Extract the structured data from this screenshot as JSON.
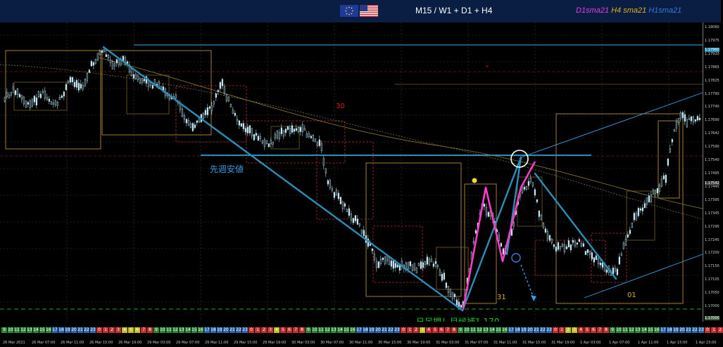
{
  "header": {
    "title": "M15 / W1 + D1 + H4",
    "flags": [
      "eu-flag-icon",
      "us-flag-icon"
    ],
    "ma_legend": [
      {
        "label": "D1sma21",
        "color": "#e040e0"
      },
      {
        "label": "H4 sma21",
        "color": "#e0b020"
      },
      {
        "label": "H1sma21",
        "color": "#3a78d8"
      }
    ]
  },
  "annotations": {
    "last_week_low": "先週安値",
    "daily_pullback": "日足押し目候補1.170",
    "day_30": "30",
    "day_31": "31",
    "day_01": "01"
  },
  "price_axis": {
    "ticks": [
      "1.18080",
      "1.17975",
      "1.17920",
      "1.17865",
      "1.17825",
      "1.17790",
      "1.17740",
      "1.17690",
      "1.17642",
      "1.17590",
      "1.17540",
      "1.17495",
      "1.17445",
      "1.17395",
      "1.17345",
      "1.17295",
      "1.17245",
      "1.17200",
      "1.17150",
      "1.17105",
      "1.17050",
      "1.17000",
      "1.16955"
    ],
    "current_price": "1.17960",
    "mid_price": "1.17542",
    "low_price": "1.17000"
  },
  "time_axis": {
    "labels": [
      "26 Mar 2021",
      "26 Mar 07:00",
      "26 Mar 11:00",
      "26 Mar 15:00",
      "26 Mar 19:00",
      "29 Mar 03:00",
      "29 Mar 07:00",
      "29 Mar 11:00",
      "29 Mar 15:00",
      "29 Mar 19:00",
      "30 Mar 03:00",
      "30 Mar 07:00",
      "30 Mar 11:00",
      "30 Mar 15:00",
      "30 Mar 19:00",
      "31 Mar 03:00",
      "31 Mar 07:00",
      "31 Mar 11:00",
      "31 Mar 15:00",
      "31 Mar 19:00",
      "1 Apr 03:00",
      "1 Apr 07:00",
      "1 Apr 11:00",
      "1 Apr 15:00",
      "1 Apr 23:00"
    ]
  },
  "colors": {
    "background": "#000000",
    "header_bg": "#0a1e44",
    "candle": "#a8d8e8",
    "trendline": "#2a8fb8",
    "zigzag": "#ff3cc8",
    "weekly_box": "#c8a040",
    "daily_box": "#b03030",
    "h4_box": "#8a6a2a",
    "channel": "#3aa0e0",
    "pullback_text": "#20c020",
    "yellow_dot": "#f0e020"
  }
}
